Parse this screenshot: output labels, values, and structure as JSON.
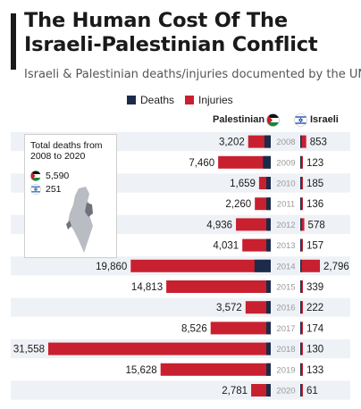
{
  "header": {
    "title": "The Human Cost Of The Israeli-Palestinian Conflict",
    "subtitle": "Israeli & Palestinian deaths/injuries documented by the UN"
  },
  "legend": [
    {
      "label": "Deaths",
      "color": "#1c2b4a"
    },
    {
      "label": "Injuries",
      "color": "#c8202f"
    }
  ],
  "columns": {
    "left": "Palestinian",
    "right": "Israeli"
  },
  "inset": {
    "title_line1": "Total deaths from",
    "title_line2": "2008 to 2020",
    "palestinian_deaths": "5,590",
    "israeli_deaths": "251"
  },
  "chart_data": {
    "type": "bar",
    "title": "The Human Cost Of The Israeli-Palestinian Conflict",
    "subtitle": "Israeli & Palestinian deaths/injuries documented by the UN",
    "categories": [
      "2008",
      "2009",
      "2010",
      "2011",
      "2012",
      "2013",
      "2014",
      "2015",
      "2016",
      "2017",
      "2018",
      "2019",
      "2020"
    ],
    "series": [
      {
        "name": "Palestinian",
        "values": [
          3202,
          7460,
          1659,
          2260,
          4936,
          4031,
          19860,
          14813,
          3572,
          8526,
          31558,
          15628,
          2781
        ],
        "labels": [
          "3,202",
          "7,460",
          "1,659",
          "2,260",
          "4,936",
          "4,031",
          "19,860",
          "14,813",
          "3,572",
          "8,526",
          "31,558",
          "15,628",
          "2,781"
        ],
        "deaths_approx": [
          900,
          1100,
          90,
          120,
          260,
          40,
          2300,
          170,
          100,
          80,
          300,
          130,
          30
        ]
      },
      {
        "name": "Israeli",
        "values": [
          853,
          123,
          185,
          136,
          578,
          157,
          2796,
          339,
          222,
          174,
          130,
          133,
          61
        ],
        "labels": [
          "853",
          "123",
          "185",
          "136",
          "578",
          "157",
          "2,796",
          "339",
          "222",
          "174",
          "130",
          "133",
          "61"
        ],
        "deaths_approx": [
          30,
          9,
          9,
          11,
          7,
          6,
          80,
          25,
          15,
          15,
          14,
          10,
          3
        ]
      }
    ],
    "legend": [
      "Deaths",
      "Injuries"
    ],
    "colors": {
      "deaths": "#1c2b4a",
      "injuries": "#c8202f",
      "row_band": "#eef1f6",
      "year": "#9a9a9a"
    }
  }
}
